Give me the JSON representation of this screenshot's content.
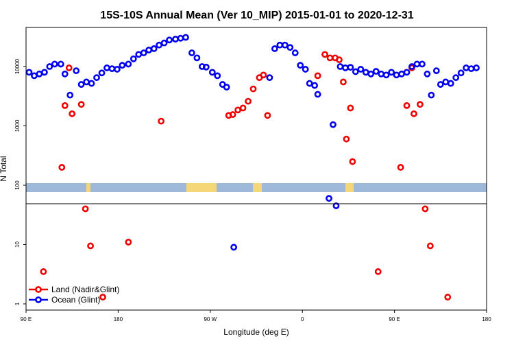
{
  "chart_data": {
    "type": "scatter",
    "title": "15S-10S Annual Mean (Ver 10_MIP)   2015-01-01 to 2020-12-31",
    "xlabel": "Longitude (deg E)",
    "ylabel": "N Total",
    "x_tick_labels": [
      "90 E",
      "180",
      "90 W",
      "0",
      "90 E",
      "180"
    ],
    "y_tick_labels": [
      "1",
      "10",
      "100",
      "1000",
      "10000"
    ],
    "y_scale": "log",
    "ylim": [
      0.8,
      60000
    ],
    "xlim": [
      90,
      540
    ],
    "land_band_colors": {
      "ocean": "#9db8d8",
      "land": "#f5d77a"
    },
    "legend_position": "bottom-left",
    "series": [
      {
        "name": "Land (Nadir&Glint)",
        "color": "#ee0000",
        "points": [
          [
            107,
            3.5
          ],
          [
            125,
            200
          ],
          [
            128,
            2200
          ],
          [
            132,
            9500
          ],
          [
            135,
            1600
          ],
          [
            144,
            2300
          ],
          [
            148,
            40
          ],
          [
            153,
            9.5
          ],
          [
            165,
            1.3
          ],
          [
            190,
            11
          ],
          [
            222,
            1200
          ],
          [
            288,
            1500
          ],
          [
            292,
            1550
          ],
          [
            297,
            1850
          ],
          [
            302,
            2000
          ],
          [
            307,
            2600
          ],
          [
            312,
            4200
          ],
          [
            318,
            6500
          ],
          [
            322,
            7200
          ],
          [
            326,
            1500
          ],
          [
            375,
            7000
          ],
          [
            382,
            16000
          ],
          [
            387,
            14000
          ],
          [
            392,
            14000
          ],
          [
            396,
            13000
          ],
          [
            400,
            5500
          ],
          [
            403,
            600
          ],
          [
            407,
            2000
          ],
          [
            409,
            250
          ],
          [
            434,
            3.5
          ],
          [
            456,
            200
          ],
          [
            462,
            2200
          ],
          [
            467,
            9500
          ],
          [
            469,
            1600
          ],
          [
            475,
            2300
          ],
          [
            480,
            40
          ],
          [
            485,
            9.5
          ],
          [
            502,
            1.3
          ]
        ]
      },
      {
        "name": "Ocean (Glint)",
        "color": "#0000ee",
        "points": [
          [
            93,
            8000
          ],
          [
            98,
            7000
          ],
          [
            103,
            7500
          ],
          [
            108,
            8000
          ],
          [
            113,
            10000
          ],
          [
            118,
            11000
          ],
          [
            124,
            11000
          ],
          [
            128,
            7500
          ],
          [
            133,
            3300
          ],
          [
            139,
            8500
          ],
          [
            144,
            5000
          ],
          [
            149,
            5500
          ],
          [
            154,
            5200
          ],
          [
            159,
            6500
          ],
          [
            164,
            7800
          ],
          [
            169,
            9500
          ],
          [
            174,
            9200
          ],
          [
            179,
            9000
          ],
          [
            184,
            10500
          ],
          [
            190,
            11000
          ],
          [
            195,
            13500
          ],
          [
            200,
            16000
          ],
          [
            205,
            17000
          ],
          [
            210,
            19000
          ],
          [
            215,
            20000
          ],
          [
            220,
            23000
          ],
          [
            225,
            25000
          ],
          [
            230,
            28000
          ],
          [
            236,
            29000
          ],
          [
            241,
            30000
          ],
          [
            246,
            31000
          ],
          [
            252,
            17000
          ],
          [
            257,
            14000
          ],
          [
            262,
            10000
          ],
          [
            266,
            9800
          ],
          [
            272,
            8000
          ],
          [
            277,
            7000
          ],
          [
            282,
            5000
          ],
          [
            286,
            4500
          ],
          [
            293,
            9
          ],
          [
            328,
            6500
          ],
          [
            333,
            20000
          ],
          [
            338,
            23000
          ],
          [
            343,
            23000
          ],
          [
            348,
            21000
          ],
          [
            353,
            17000
          ],
          [
            358,
            10500
          ],
          [
            363,
            9000
          ],
          [
            367,
            5200
          ],
          [
            372,
            4800
          ],
          [
            375,
            3400
          ],
          [
            386,
            60
          ],
          [
            390,
            1050
          ],
          [
            393,
            45
          ],
          [
            397,
            10000
          ],
          [
            402,
            9500
          ],
          [
            407,
            9700
          ],
          [
            412,
            8200
          ],
          [
            417,
            9000
          ],
          [
            422,
            8000
          ],
          [
            427,
            7500
          ],
          [
            432,
            8300
          ],
          [
            437,
            7500
          ],
          [
            442,
            7200
          ],
          [
            447,
            8000
          ],
          [
            452,
            7200
          ],
          [
            457,
            7500
          ],
          [
            462,
            8000
          ],
          [
            467,
            10000
          ],
          [
            472,
            11000
          ],
          [
            477,
            11000
          ],
          [
            482,
            7500
          ],
          [
            486,
            3300
          ],
          [
            491,
            8500
          ],
          [
            495,
            5000
          ],
          [
            500,
            5500
          ],
          [
            505,
            5200
          ],
          [
            510,
            6500
          ],
          [
            515,
            7800
          ],
          [
            520,
            9500
          ],
          [
            525,
            9200
          ],
          [
            530,
            9500
          ]
        ]
      }
    ]
  }
}
